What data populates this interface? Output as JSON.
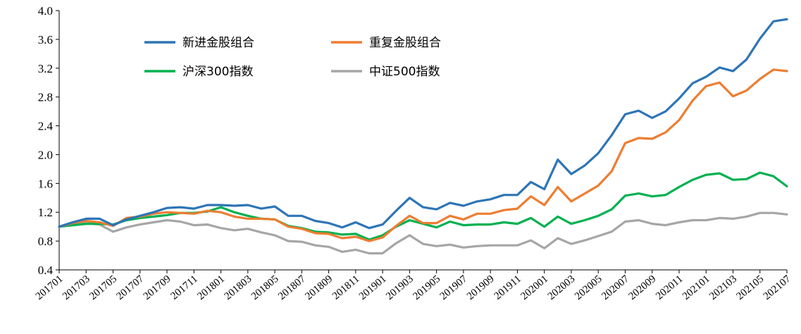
{
  "chart_data": {
    "type": "line",
    "title": "",
    "xlabel": "",
    "ylabel": "",
    "ylim": [
      0.4,
      4.0
    ],
    "yticks": [
      "0.4",
      "0.8",
      "1.2",
      "1.6",
      "2.0",
      "2.4",
      "2.8",
      "3.2",
      "3.6",
      "4.0"
    ],
    "grid": false,
    "legend_position": "top-left",
    "x": [
      "201701",
      "201702",
      "201703",
      "201704",
      "201705",
      "201706",
      "201707",
      "201708",
      "201709",
      "201710",
      "201711",
      "201712",
      "201801",
      "201802",
      "201803",
      "201804",
      "201805",
      "201806",
      "201807",
      "201808",
      "201809",
      "201810",
      "201811",
      "201812",
      "201901",
      "201902",
      "201903",
      "201904",
      "201905",
      "201906",
      "201907",
      "201908",
      "201909",
      "201910",
      "201911",
      "201912",
      "202001",
      "202002",
      "202003",
      "202004",
      "202005",
      "202006",
      "202007",
      "202008",
      "202009",
      "202010",
      "202011",
      "202012",
      "202101",
      "202102",
      "202103",
      "202104",
      "202105",
      "202106",
      "202107"
    ],
    "xtick_labels": [
      "201701",
      "201703",
      "201705",
      "201707",
      "201709",
      "201711",
      "201801",
      "201803",
      "201805",
      "201807",
      "201809",
      "201811",
      "201901",
      "201903",
      "201905",
      "201907",
      "201909",
      "201911",
      "202001",
      "202003",
      "202005",
      "202007",
      "202009",
      "202011",
      "202101",
      "202103",
      "202105",
      "202107"
    ],
    "series": [
      {
        "name": "新进金股组合",
        "color": "#2E75B6",
        "values": [
          1.0,
          1.06,
          1.11,
          1.11,
          1.02,
          1.1,
          1.15,
          1.2,
          1.26,
          1.27,
          1.25,
          1.3,
          1.3,
          1.29,
          1.3,
          1.25,
          1.28,
          1.15,
          1.15,
          1.08,
          1.05,
          0.99,
          1.06,
          0.98,
          1.03,
          1.22,
          1.4,
          1.27,
          1.24,
          1.33,
          1.29,
          1.35,
          1.38,
          1.44,
          1.44,
          1.62,
          1.52,
          1.93,
          1.73,
          1.85,
          2.02,
          2.27,
          2.56,
          2.61,
          2.51,
          2.6,
          2.78,
          2.99,
          3.08,
          3.21,
          3.16,
          3.32,
          3.61,
          3.85,
          3.88
        ]
      },
      {
        "name": "重复金股组合",
        "color": "#ED7D31",
        "values": [
          1.0,
          1.05,
          1.08,
          1.06,
          1.01,
          1.12,
          1.14,
          1.18,
          1.2,
          1.19,
          1.18,
          1.22,
          1.2,
          1.14,
          1.11,
          1.11,
          1.1,
          1.0,
          0.97,
          0.91,
          0.9,
          0.84,
          0.86,
          0.8,
          0.85,
          1.01,
          1.15,
          1.05,
          1.05,
          1.15,
          1.1,
          1.18,
          1.18,
          1.23,
          1.25,
          1.42,
          1.3,
          1.55,
          1.35,
          1.46,
          1.57,
          1.77,
          2.16,
          2.23,
          2.22,
          2.31,
          2.48,
          2.75,
          2.95,
          3.0,
          2.81,
          2.89,
          3.05,
          3.18,
          3.16
        ]
      },
      {
        "name": "沪深300指数",
        "color": "#00B050",
        "values": [
          1.0,
          1.02,
          1.04,
          1.04,
          1.03,
          1.09,
          1.12,
          1.14,
          1.16,
          1.19,
          1.19,
          1.21,
          1.27,
          1.2,
          1.15,
          1.11,
          1.1,
          1.01,
          0.98,
          0.93,
          0.92,
          0.89,
          0.9,
          0.82,
          0.88,
          1.0,
          1.09,
          1.04,
          0.99,
          1.07,
          1.02,
          1.03,
          1.03,
          1.06,
          1.04,
          1.12,
          1.0,
          1.14,
          1.04,
          1.09,
          1.15,
          1.24,
          1.43,
          1.46,
          1.42,
          1.44,
          1.55,
          1.65,
          1.72,
          1.74,
          1.65,
          1.66,
          1.75,
          1.7,
          1.56
        ]
      },
      {
        "name": "中证500指数",
        "color": "#A6A6A6",
        "values": [
          1.0,
          1.04,
          1.05,
          1.03,
          0.93,
          0.99,
          1.03,
          1.06,
          1.09,
          1.07,
          1.02,
          1.03,
          0.98,
          0.95,
          0.97,
          0.92,
          0.88,
          0.8,
          0.79,
          0.74,
          0.72,
          0.65,
          0.68,
          0.63,
          0.63,
          0.77,
          0.88,
          0.76,
          0.73,
          0.75,
          0.71,
          0.73,
          0.74,
          0.74,
          0.74,
          0.81,
          0.7,
          0.84,
          0.76,
          0.81,
          0.87,
          0.93,
          1.07,
          1.09,
          1.04,
          1.02,
          1.06,
          1.09,
          1.09,
          1.12,
          1.11,
          1.14,
          1.19,
          1.19,
          1.17
        ]
      }
    ]
  }
}
